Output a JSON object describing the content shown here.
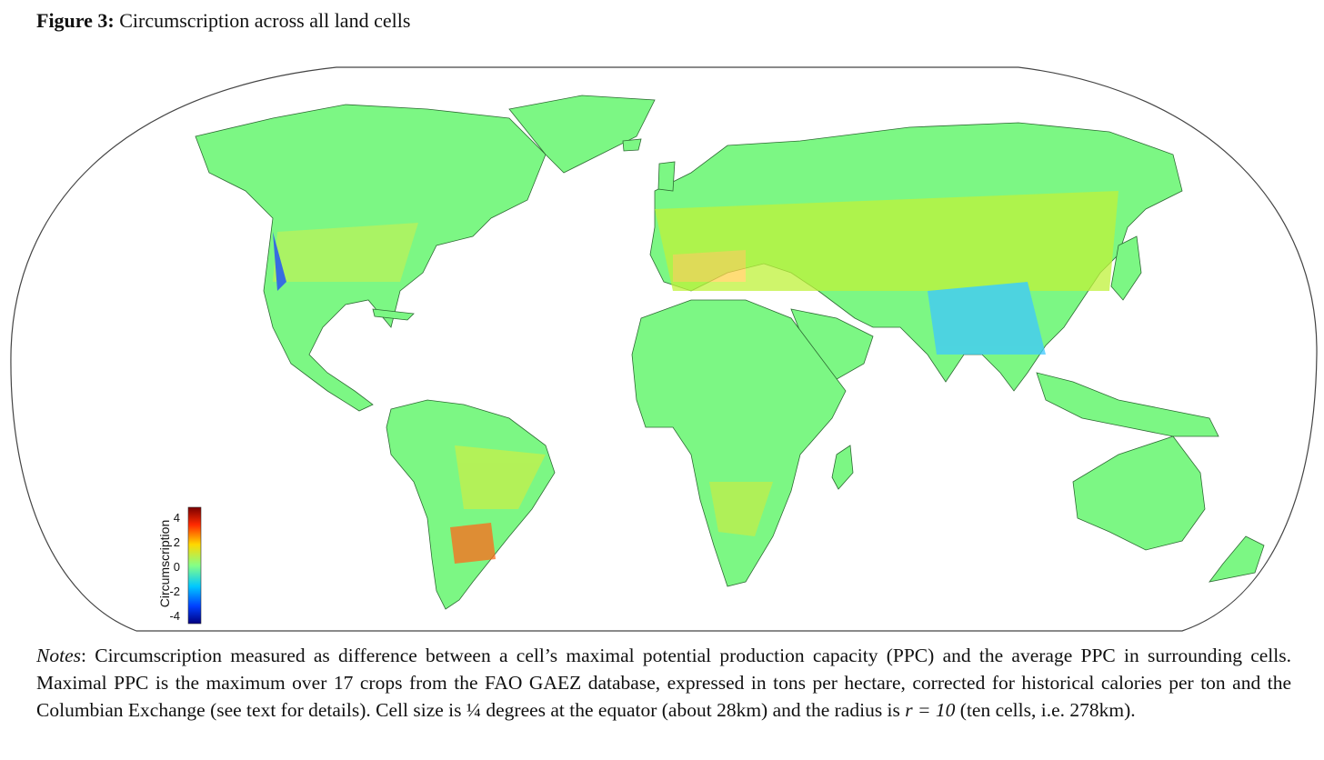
{
  "figure": {
    "label": "Figure 3:",
    "title": "Circumscription across all land cells"
  },
  "map": {
    "projection": "Robinson",
    "land_color": "#7cf784",
    "ocean_color": "#ffffff",
    "colorbar": {
      "title": "Circumscription",
      "ticks": [
        "4",
        "2",
        "0",
        "-2",
        "-4"
      ],
      "colors": [
        "#7a0000",
        "#ff2a00",
        "#ffd800",
        "#86ff86",
        "#00c8ff",
        "#0040ff",
        "#000080"
      ]
    }
  },
  "notes": {
    "lead": "Notes",
    "text": ": Circumscription measured as difference between a cell’s maximal potential production capacity (PPC) and the average PPC in surrounding cells. Maximal PPC is the maximum over 17 crops from the FAO GAEZ database, expressed in tons per hectare, corrected for historical calories per ton and the Columbian Exchange (see text for details). Cell size is ¼ degrees at the equator (about 28km) and the radius is ",
    "formula": "r = 10",
    "tail": " (ten cells, i.e. 278km)."
  }
}
